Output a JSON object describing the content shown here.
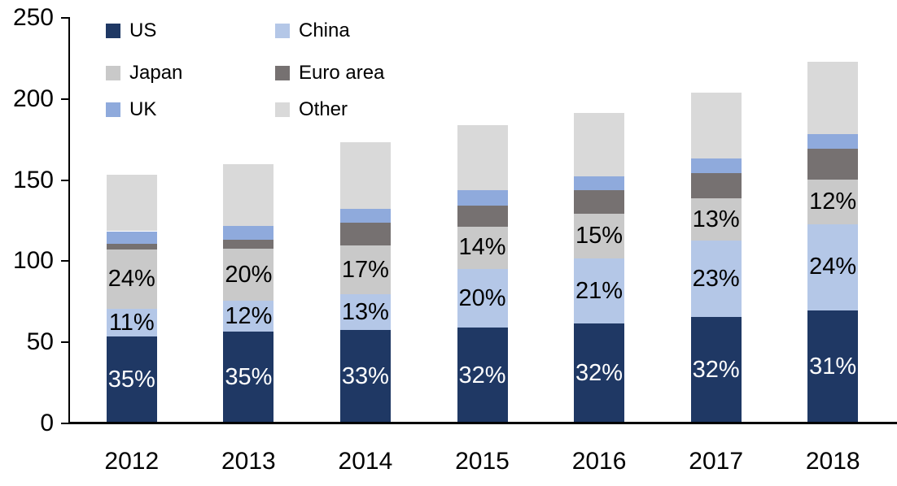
{
  "chart_data": {
    "type": "bar",
    "stacked": true,
    "title": "",
    "xlabel": "",
    "ylabel": "",
    "categories": [
      "2012",
      "2013",
      "2014",
      "2015",
      "2016",
      "2017",
      "2018"
    ],
    "series": [
      {
        "name": "US",
        "color": "#1F3864",
        "values": [
          53.5,
          56.5,
          57.5,
          59.0,
          61.5,
          65.5,
          69.5
        ],
        "labels": [
          "35%",
          "35%",
          "33%",
          "32%",
          "32%",
          "32%",
          "31%"
        ],
        "label_color": "#FFFFFF"
      },
      {
        "name": "China",
        "color": "#B4C7E7",
        "values": [
          17.0,
          19.0,
          22.0,
          36.0,
          40.0,
          47.0,
          53.5
        ],
        "labels": [
          "11%",
          "12%",
          "13%",
          "20%",
          "21%",
          "23%",
          "24%"
        ],
        "label_color": "#000000"
      },
      {
        "name": "Japan",
        "color": "#C9C9C9",
        "values": [
          36.5,
          32.0,
          30.0,
          26.5,
          28.0,
          26.5,
          27.5
        ],
        "labels": [
          "24%",
          "20%",
          "17%",
          "14%",
          "15%",
          "13%",
          "12%"
        ],
        "label_color": "#000000"
      },
      {
        "name": "Euro area",
        "color": "#767171",
        "values": [
          3.5,
          5.5,
          14.5,
          13.0,
          14.5,
          15.5,
          19.0
        ],
        "labels": [
          "",
          "",
          "",
          "",
          "",
          "",
          ""
        ],
        "label_color": "#000000"
      },
      {
        "name": "UK",
        "color": "#8FAADC",
        "values": [
          8.0,
          9.0,
          8.5,
          9.5,
          8.5,
          9.0,
          9.0
        ],
        "labels": [
          "",
          "",
          "",
          "",
          "",
          "",
          ""
        ],
        "label_color": "#000000"
      },
      {
        "name": "Other",
        "color": "#D9D9D9",
        "values": [
          35.0,
          38.0,
          41.0,
          40.0,
          39.0,
          40.5,
          44.5
        ],
        "labels": [
          "",
          "",
          "",
          "",
          "",
          "",
          ""
        ],
        "label_color": "#000000"
      }
    ],
    "totals": [
      153.5,
      160.0,
      174.0,
      184.0,
      192.0,
      204.0,
      223.0
    ],
    "ylim": [
      0,
      250
    ],
    "yticks": [
      "0",
      "50",
      "100",
      "150",
      "200",
      "250"
    ],
    "grid": false,
    "legend_position": "top-left",
    "legend_columns": 2,
    "axis_color": "#000000",
    "background_color": "#FFFFFF"
  }
}
